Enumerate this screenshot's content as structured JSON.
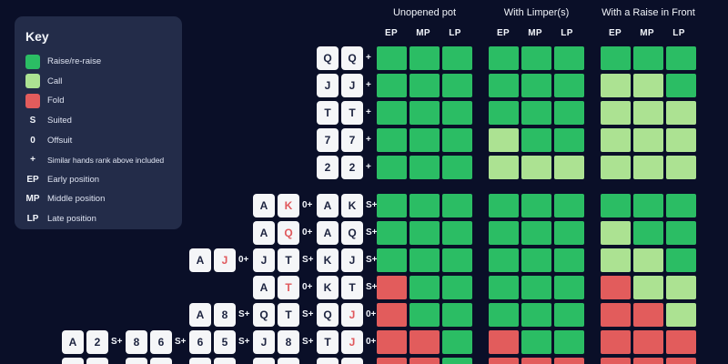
{
  "colors": {
    "background": "#0a0f28",
    "panel": "#232c49",
    "raise": "#2bbd64",
    "call": "#ace292",
    "fold": "#e25c5c",
    "card_bg": "#f5f6f8",
    "card_text": "#1d2440",
    "card_text_red": "#e0585c",
    "text": "#f1f4fa"
  },
  "key": {
    "title": "Key",
    "items": [
      {
        "swatch": "raise",
        "label": "Raise/re-raise"
      },
      {
        "swatch": "call",
        "label": "Call"
      },
      {
        "swatch": "fold",
        "label": "Fold"
      },
      {
        "symbol": "S",
        "label": "Suited"
      },
      {
        "symbol": "0",
        "label": "Offsuit"
      },
      {
        "symbol": "+",
        "label": "Similar hands rank above included"
      },
      {
        "symbol": "EP",
        "label": "Early position"
      },
      {
        "symbol": "MP",
        "label": "Middle position"
      },
      {
        "symbol": "LP",
        "label": "Late position"
      }
    ]
  },
  "chart_data": {
    "type": "table",
    "scenarios": [
      "Unopened pot",
      "With Limper(s)",
      "With a Raise in Front"
    ],
    "positions": [
      "EP",
      "MP",
      "LP"
    ],
    "action_legend": {
      "raise": "Raise/re-raise",
      "call": "Call",
      "fold": "Fold"
    },
    "sections": [
      {
        "name": "pocket-pairs",
        "rows": [
          {
            "hands": [
              {
                "col": 4,
                "cards": [
                  {
                    "r": "Q",
                    "red": false
                  },
                  {
                    "r": "Q",
                    "red": false
                  }
                ],
                "suffix": "+"
              }
            ],
            "actions": [
              [
                "raise",
                "raise",
                "raise"
              ],
              [
                "raise",
                "raise",
                "raise"
              ],
              [
                "raise",
                "raise",
                "raise"
              ]
            ]
          },
          {
            "hands": [
              {
                "col": 4,
                "cards": [
                  {
                    "r": "J",
                    "red": false
                  },
                  {
                    "r": "J",
                    "red": false
                  }
                ],
                "suffix": "+"
              }
            ],
            "actions": [
              [
                "raise",
                "raise",
                "raise"
              ],
              [
                "raise",
                "raise",
                "raise"
              ],
              [
                "call",
                "call",
                "raise"
              ]
            ]
          },
          {
            "hands": [
              {
                "col": 4,
                "cards": [
                  {
                    "r": "T",
                    "red": false
                  },
                  {
                    "r": "T",
                    "red": false
                  }
                ],
                "suffix": "+"
              }
            ],
            "actions": [
              [
                "raise",
                "raise",
                "raise"
              ],
              [
                "raise",
                "raise",
                "raise"
              ],
              [
                "call",
                "call",
                "call"
              ]
            ]
          },
          {
            "hands": [
              {
                "col": 4,
                "cards": [
                  {
                    "r": "7",
                    "red": false
                  },
                  {
                    "r": "7",
                    "red": false
                  }
                ],
                "suffix": "+"
              }
            ],
            "actions": [
              [
                "raise",
                "raise",
                "raise"
              ],
              [
                "call",
                "raise",
                "raise"
              ],
              [
                "call",
                "call",
                "call"
              ]
            ]
          },
          {
            "hands": [
              {
                "col": 4,
                "cards": [
                  {
                    "r": "2",
                    "red": false
                  },
                  {
                    "r": "2",
                    "red": false
                  }
                ],
                "suffix": "+"
              }
            ],
            "actions": [
              [
                "raise",
                "raise",
                "raise"
              ],
              [
                "call",
                "call",
                "call"
              ],
              [
                "call",
                "call",
                "call"
              ]
            ]
          }
        ]
      },
      {
        "name": "unpaired-hands",
        "rows": [
          {
            "hands": [
              {
                "col": 3,
                "cards": [
                  {
                    "r": "A",
                    "red": false
                  },
                  {
                    "r": "K",
                    "red": true
                  }
                ],
                "suffix": "0+"
              },
              {
                "col": 4,
                "cards": [
                  {
                    "r": "A",
                    "red": false
                  },
                  {
                    "r": "K",
                    "red": false
                  }
                ],
                "suffix": "S+"
              }
            ],
            "actions": [
              [
                "raise",
                "raise",
                "raise"
              ],
              [
                "raise",
                "raise",
                "raise"
              ],
              [
                "raise",
                "raise",
                "raise"
              ]
            ]
          },
          {
            "hands": [
              {
                "col": 3,
                "cards": [
                  {
                    "r": "A",
                    "red": false
                  },
                  {
                    "r": "Q",
                    "red": true
                  }
                ],
                "suffix": "0+"
              },
              {
                "col": 4,
                "cards": [
                  {
                    "r": "A",
                    "red": false
                  },
                  {
                    "r": "Q",
                    "red": false
                  }
                ],
                "suffix": "S+"
              }
            ],
            "actions": [
              [
                "raise",
                "raise",
                "raise"
              ],
              [
                "raise",
                "raise",
                "raise"
              ],
              [
                "call",
                "raise",
                "raise"
              ]
            ]
          },
          {
            "hands": [
              {
                "col": 2,
                "cards": [
                  {
                    "r": "A",
                    "red": false
                  },
                  {
                    "r": "J",
                    "red": true
                  }
                ],
                "suffix": "0+"
              },
              {
                "col": 3,
                "cards": [
                  {
                    "r": "J",
                    "red": false
                  },
                  {
                    "r": "T",
                    "red": false
                  }
                ],
                "suffix": "S+"
              },
              {
                "col": 4,
                "cards": [
                  {
                    "r": "K",
                    "red": false
                  },
                  {
                    "r": "J",
                    "red": false
                  }
                ],
                "suffix": "S+"
              }
            ],
            "actions": [
              [
                "raise",
                "raise",
                "raise"
              ],
              [
                "raise",
                "raise",
                "raise"
              ],
              [
                "call",
                "call",
                "raise"
              ]
            ]
          },
          {
            "hands": [
              {
                "col": 3,
                "cards": [
                  {
                    "r": "A",
                    "red": false
                  },
                  {
                    "r": "T",
                    "red": true
                  }
                ],
                "suffix": "0+"
              },
              {
                "col": 4,
                "cards": [
                  {
                    "r": "K",
                    "red": false
                  },
                  {
                    "r": "T",
                    "red": false
                  }
                ],
                "suffix": "S+"
              }
            ],
            "actions": [
              [
                "fold",
                "raise",
                "raise"
              ],
              [
                "raise",
                "raise",
                "raise"
              ],
              [
                "fold",
                "call",
                "call"
              ]
            ]
          },
          {
            "hands": [
              {
                "col": 2,
                "cards": [
                  {
                    "r": "A",
                    "red": false
                  },
                  {
                    "r": "8",
                    "red": false
                  }
                ],
                "suffix": "S+"
              },
              {
                "col": 3,
                "cards": [
                  {
                    "r": "Q",
                    "red": false
                  },
                  {
                    "r": "T",
                    "red": false
                  }
                ],
                "suffix": "S+"
              },
              {
                "col": 4,
                "cards": [
                  {
                    "r": "Q",
                    "red": false
                  },
                  {
                    "r": "J",
                    "red": true
                  }
                ],
                "suffix": "0+"
              }
            ],
            "actions": [
              [
                "fold",
                "raise",
                "raise"
              ],
              [
                "raise",
                "raise",
                "raise"
              ],
              [
                "fold",
                "fold",
                "call"
              ]
            ]
          },
          {
            "hands": [
              {
                "col": 0,
                "cards": [
                  {
                    "r": "A",
                    "red": false
                  },
                  {
                    "r": "2",
                    "red": false
                  }
                ],
                "suffix": "S+"
              },
              {
                "col": 1,
                "cards": [
                  {
                    "r": "8",
                    "red": false
                  },
                  {
                    "r": "6",
                    "red": false
                  }
                ],
                "suffix": "S+"
              },
              {
                "col": 2,
                "cards": [
                  {
                    "r": "6",
                    "red": false
                  },
                  {
                    "r": "5",
                    "red": false
                  }
                ],
                "suffix": "S+"
              },
              {
                "col": 3,
                "cards": [
                  {
                    "r": "J",
                    "red": false
                  },
                  {
                    "r": "8",
                    "red": false
                  }
                ],
                "suffix": "S+"
              },
              {
                "col": 4,
                "cards": [
                  {
                    "r": "T",
                    "red": false
                  },
                  {
                    "r": "J",
                    "red": true
                  }
                ],
                "suffix": "0+"
              }
            ],
            "actions": [
              [
                "fold",
                "fold",
                "raise"
              ],
              [
                "fold",
                "raise",
                "raise"
              ],
              [
                "fold",
                "fold",
                "fold"
              ]
            ]
          },
          {
            "hands": [
              {
                "col": 0,
                "cards": [
                  {
                    "r": "",
                    "red": false
                  },
                  {
                    "r": "",
                    "red": false
                  }
                ],
                "suffix": ""
              },
              {
                "col": 1,
                "cards": [
                  {
                    "r": "",
                    "red": false
                  },
                  {
                    "r": "",
                    "red": false
                  }
                ],
                "suffix": ""
              },
              {
                "col": 2,
                "cards": [
                  {
                    "r": "",
                    "red": false
                  },
                  {
                    "r": "",
                    "red": false
                  }
                ],
                "suffix": ""
              },
              {
                "col": 3,
                "cards": [
                  {
                    "r": "",
                    "red": false
                  },
                  {
                    "r": "",
                    "red": false
                  }
                ],
                "suffix": ""
              },
              {
                "col": 4,
                "cards": [
                  {
                    "r": "",
                    "red": false
                  },
                  {
                    "r": "",
                    "red": false
                  }
                ],
                "suffix": ""
              }
            ],
            "actions": [
              [
                "fold",
                "fold",
                "raise"
              ],
              [
                "fold",
                "fold",
                "fold"
              ],
              [
                "fold",
                "fold",
                "fold"
              ]
            ]
          }
        ]
      }
    ]
  }
}
